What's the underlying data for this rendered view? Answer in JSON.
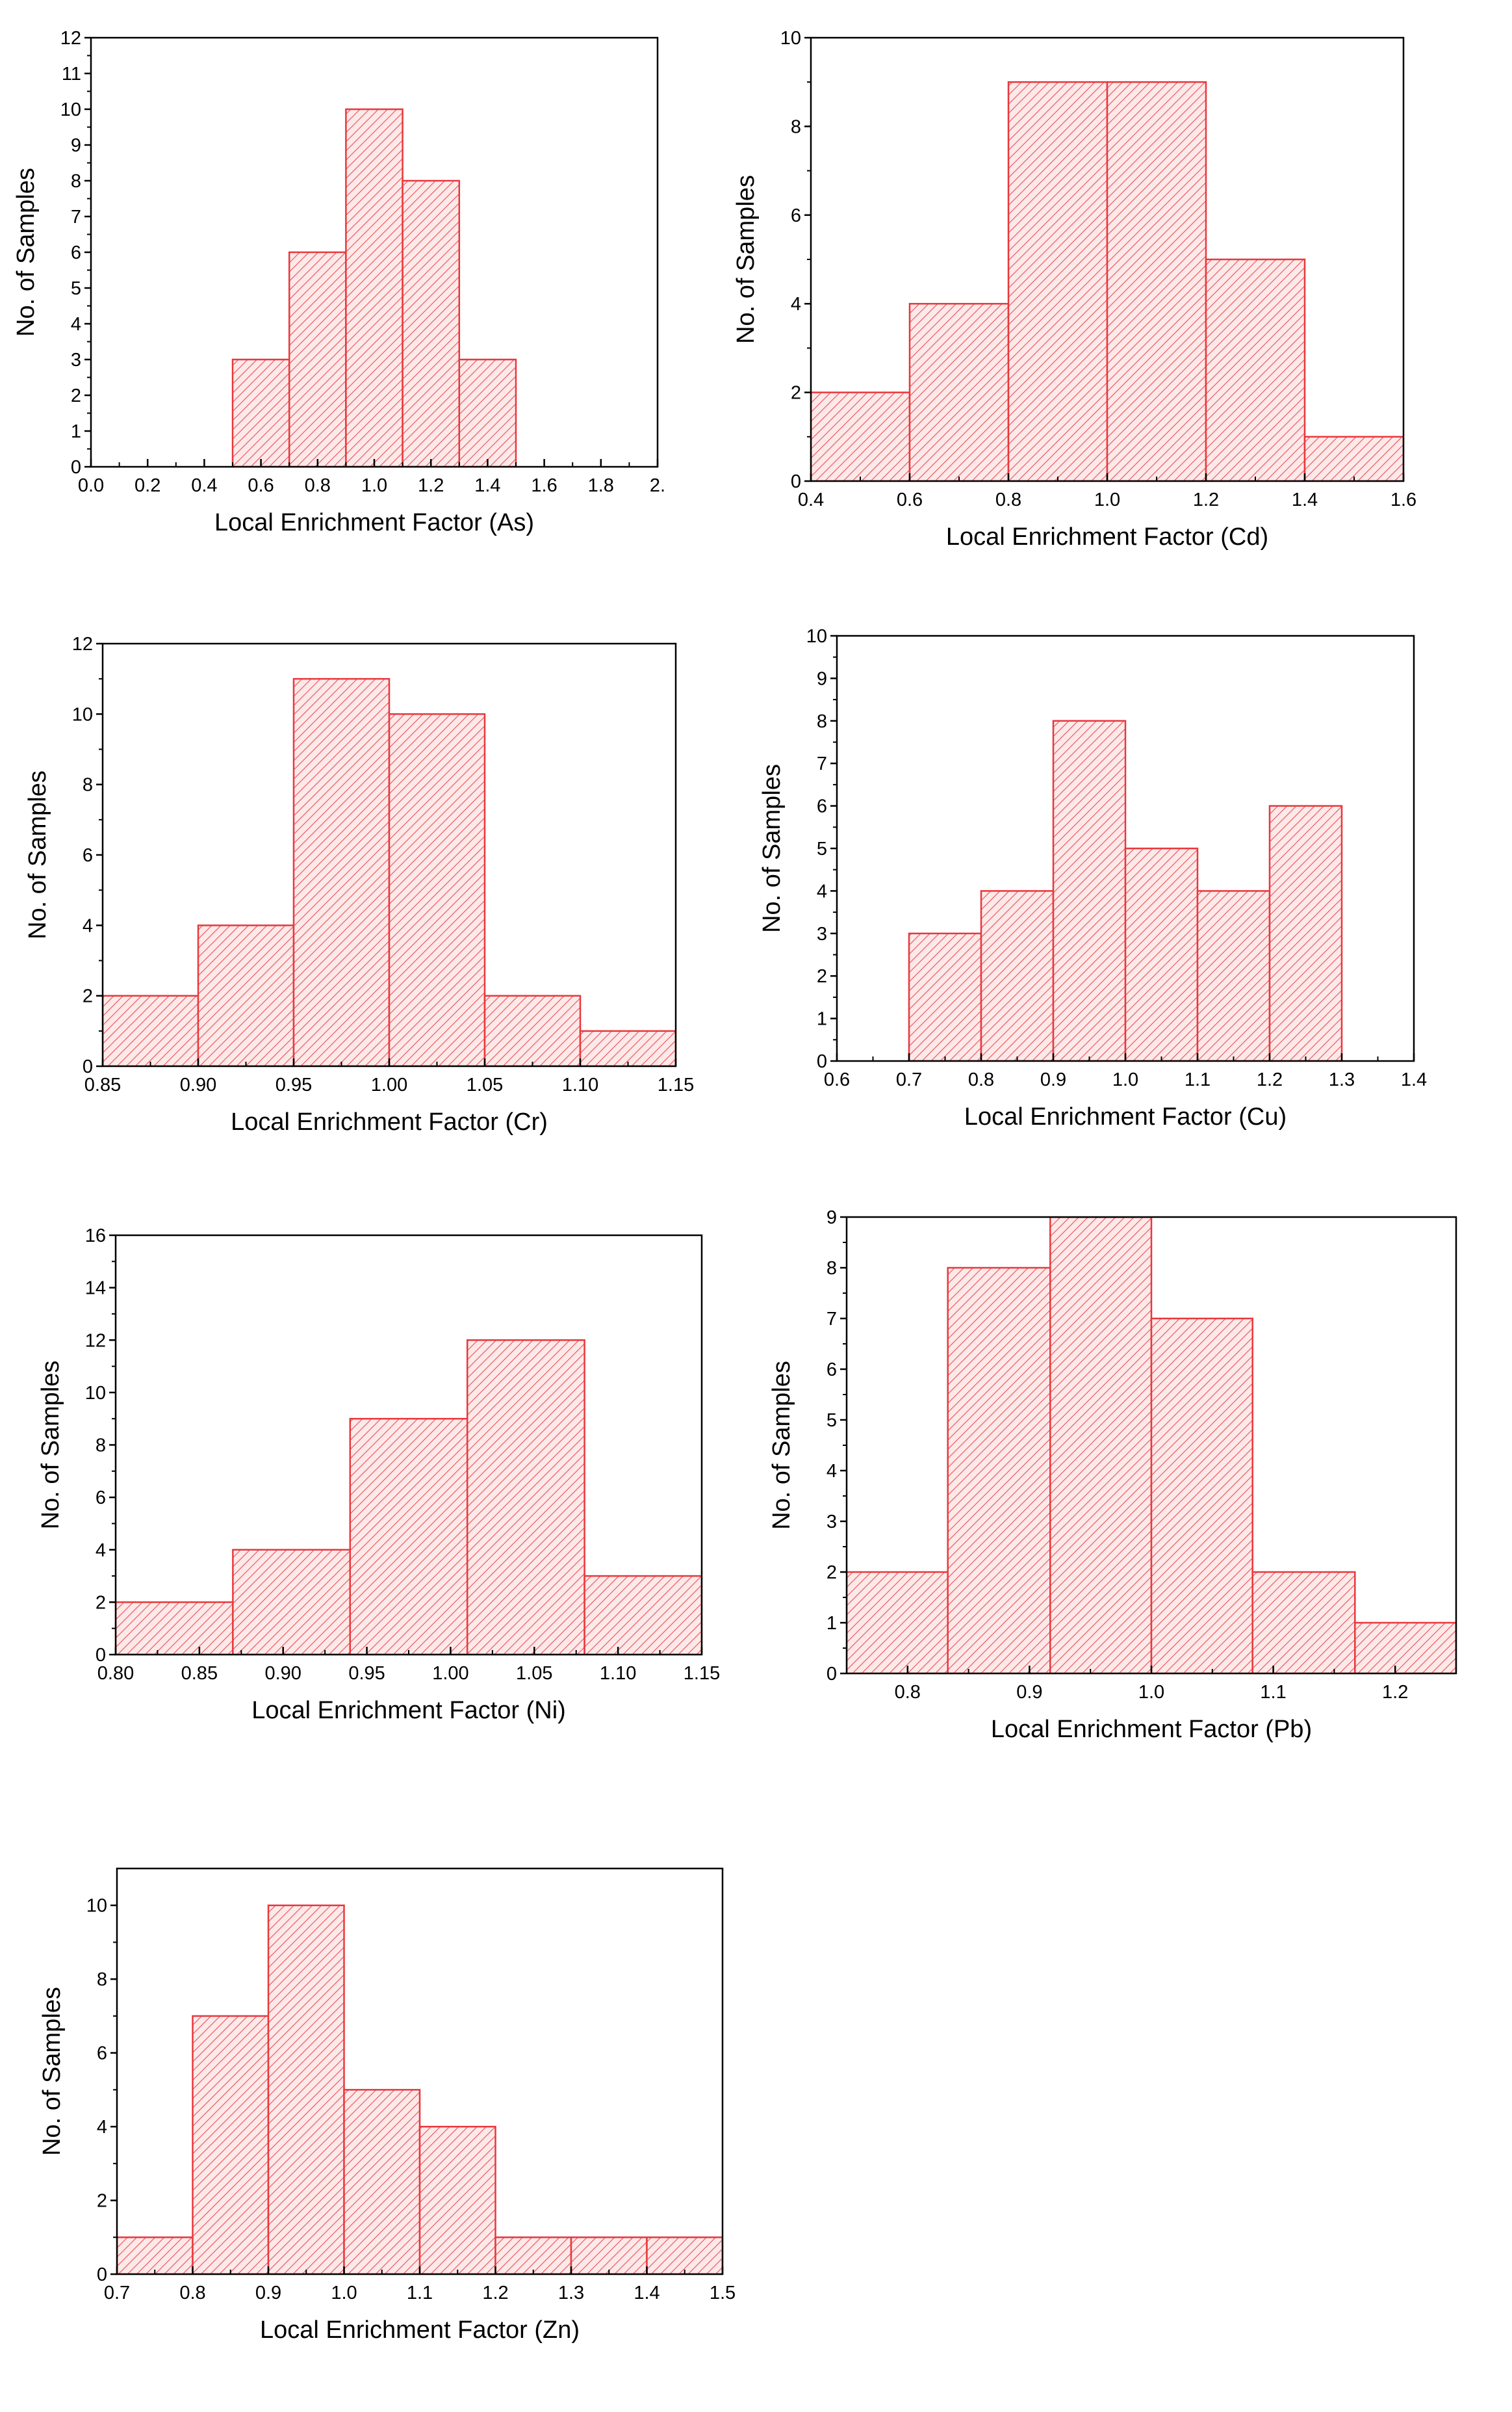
{
  "colors": {
    "bar_stroke": "#e8383d",
    "bar_fill": "#fde9e9",
    "hatch": "#ea5a5e",
    "axis": "#000000"
  },
  "chart_data": [
    {
      "type": "bar",
      "id": "As",
      "xlabel": "Local Enrichment Factor (As)",
      "ylabel": "No. of Samples",
      "bins": [
        [
          0.5,
          0.7
        ],
        [
          0.7,
          0.9
        ],
        [
          0.9,
          1.1
        ],
        [
          1.1,
          1.3
        ],
        [
          1.3,
          1.5
        ]
      ],
      "values": [
        3,
        6,
        10,
        8,
        3
      ],
      "xlim": [
        0.0,
        2.0
      ],
      "ylim": [
        0,
        12
      ],
      "xticks": [
        0.0,
        0.2,
        0.4,
        0.6,
        0.8,
        1.0,
        1.2,
        1.4,
        1.6,
        1.8,
        2.0
      ],
      "xtick_labels": [
        "0.0",
        "0.2",
        "0.4",
        "0.6",
        "0.8",
        "1.0",
        "1.2",
        "1.4",
        "1.6",
        "1.8",
        "2."
      ],
      "yticks": [
        0,
        1,
        2,
        3,
        4,
        5,
        6,
        7,
        8,
        9,
        10,
        11,
        12
      ],
      "ytick_labels": [
        "0",
        "1",
        "2",
        "3",
        "4",
        "5",
        "6",
        "7",
        "8",
        "9",
        "10",
        "11",
        "12"
      ]
    },
    {
      "type": "bar",
      "id": "Cd",
      "xlabel": "Local Enrichment Factor (Cd)",
      "ylabel": "No. of Samples",
      "bins": [
        [
          0.4,
          0.6
        ],
        [
          0.6,
          0.8
        ],
        [
          0.8,
          1.0
        ],
        [
          1.0,
          1.2
        ],
        [
          1.2,
          1.4
        ],
        [
          1.4,
          1.6
        ]
      ],
      "values": [
        2,
        4,
        9,
        9,
        5,
        1
      ],
      "xlim": [
        0.4,
        1.6
      ],
      "ylim": [
        0,
        10
      ],
      "xticks": [
        0.4,
        0.6,
        0.8,
        1.0,
        1.2,
        1.4,
        1.6
      ],
      "xtick_labels": [
        "0.4",
        "0.6",
        "0.8",
        "1.0",
        "1.2",
        "1.4",
        "1.6"
      ],
      "yticks": [
        0,
        2,
        4,
        6,
        8,
        10
      ],
      "ytick_labels": [
        "0",
        "2",
        "4",
        "6",
        "8",
        "10"
      ]
    },
    {
      "type": "bar",
      "id": "Cr",
      "xlabel": "Local Enrichment Factor (Cr)",
      "ylabel": "No. of Samples",
      "bins": [
        [
          0.85,
          0.9
        ],
        [
          0.9,
          0.95
        ],
        [
          0.95,
          1.0
        ],
        [
          1.0,
          1.05
        ],
        [
          1.05,
          1.1
        ],
        [
          1.1,
          1.15
        ]
      ],
      "values": [
        2,
        4,
        11,
        10,
        2,
        1
      ],
      "xlim": [
        0.85,
        1.15
      ],
      "ylim": [
        0,
        12
      ],
      "xticks": [
        0.85,
        0.9,
        0.95,
        1.0,
        1.05,
        1.1,
        1.15
      ],
      "xtick_labels": [
        "0.85",
        "0.90",
        "0.95",
        "1.00",
        "1.05",
        "1.10",
        "1.15"
      ],
      "yticks": [
        0,
        2,
        4,
        6,
        8,
        10,
        12
      ],
      "ytick_labels": [
        "0",
        "2",
        "4",
        "6",
        "8",
        "10",
        "12"
      ]
    },
    {
      "type": "bar",
      "id": "Cu",
      "xlabel": "Local Enrichment Factor (Cu)",
      "ylabel": "No. of Samples",
      "bins": [
        [
          0.7,
          0.8
        ],
        [
          0.8,
          0.9
        ],
        [
          0.9,
          1.0
        ],
        [
          1.0,
          1.1
        ],
        [
          1.1,
          1.2
        ],
        [
          1.2,
          1.3
        ]
      ],
      "values": [
        3,
        4,
        8,
        5,
        4,
        6
      ],
      "xlim": [
        0.6,
        1.4
      ],
      "ylim": [
        0,
        10
      ],
      "xticks": [
        0.6,
        0.7,
        0.8,
        0.9,
        1.0,
        1.1,
        1.2,
        1.3,
        1.4
      ],
      "xtick_labels": [
        "0.6",
        "0.7",
        "0.8",
        "0.9",
        "1.0",
        "1.1",
        "1.2",
        "1.3",
        "1.4"
      ],
      "yticks": [
        0,
        1,
        2,
        3,
        4,
        5,
        6,
        7,
        8,
        9,
        10
      ],
      "ytick_labels": [
        "0",
        "1",
        "2",
        "3",
        "4",
        "5",
        "6",
        "7",
        "8",
        "9",
        "10"
      ]
    },
    {
      "type": "bar",
      "id": "Ni",
      "xlabel": "Local Enrichment Factor (Ni)",
      "ylabel": "No. of Samples",
      "bins": [
        [
          0.8,
          0.87
        ],
        [
          0.87,
          0.94
        ],
        [
          0.94,
          1.01
        ],
        [
          1.01,
          1.08
        ],
        [
          1.08,
          1.15
        ]
      ],
      "values": [
        2,
        4,
        9,
        12,
        3
      ],
      "xlim": [
        0.8,
        1.15
      ],
      "ylim": [
        0,
        16
      ],
      "xticks": [
        0.8,
        0.85,
        0.9,
        0.95,
        1.0,
        1.05,
        1.1,
        1.15
      ],
      "xtick_labels": [
        "0.80",
        "0.85",
        "0.90",
        "0.95",
        "1.00",
        "1.05",
        "1.10",
        "1.15"
      ],
      "yticks": [
        0,
        2,
        4,
        6,
        8,
        10,
        12,
        14,
        16
      ],
      "ytick_labels": [
        "0",
        "2",
        "4",
        "6",
        "8",
        "10",
        "12",
        "14",
        "16"
      ]
    },
    {
      "type": "bar",
      "id": "Pb",
      "xlabel": "Local Enrichment Factor (Pb)",
      "ylabel": "No. of Samples",
      "bins": [
        [
          0.75,
          0.833
        ],
        [
          0.833,
          0.917
        ],
        [
          0.917,
          1.0
        ],
        [
          1.0,
          1.083
        ],
        [
          1.083,
          1.167
        ],
        [
          1.167,
          1.25
        ]
      ],
      "values": [
        2,
        8,
        9,
        7,
        2,
        1
      ],
      "xlim": [
        0.75,
        1.25
      ],
      "ylim": [
        0,
        9
      ],
      "xticks": [
        0.8,
        0.9,
        1.0,
        1.1,
        1.2
      ],
      "xtick_labels": [
        "0.8",
        "0.9",
        "1.0",
        "1.1",
        "1.2"
      ],
      "yticks": [
        0,
        1,
        2,
        3,
        4,
        5,
        6,
        7,
        8,
        9
      ],
      "ytick_labels": [
        "0",
        "1",
        "2",
        "3",
        "4",
        "5",
        "6",
        "7",
        "8",
        "9"
      ]
    },
    {
      "type": "bar",
      "id": "Zn",
      "xlabel": "Local Enrichment Factor (Zn)",
      "ylabel": "No. of Samples",
      "bins": [
        [
          0.7,
          0.8
        ],
        [
          0.8,
          0.9
        ],
        [
          0.9,
          1.0
        ],
        [
          1.0,
          1.1
        ],
        [
          1.1,
          1.2
        ],
        [
          1.2,
          1.3
        ],
        [
          1.3,
          1.4
        ],
        [
          1.4,
          1.5
        ]
      ],
      "values": [
        1,
        7,
        10,
        5,
        4,
        1,
        1,
        1
      ],
      "xlim": [
        0.7,
        1.5
      ],
      "ylim": [
        0,
        11
      ],
      "xticks": [
        0.7,
        0.8,
        0.9,
        1.0,
        1.1,
        1.2,
        1.3,
        1.4,
        1.5
      ],
      "xtick_labels": [
        "0.7",
        "0.8",
        "0.9",
        "1.0",
        "1.1",
        "1.2",
        "1.3",
        "1.4",
        "1.5"
      ],
      "yticks": [
        0,
        2,
        4,
        6,
        8,
        10
      ],
      "ytick_labels": [
        "0",
        "2",
        "4",
        "6",
        "8",
        "10"
      ]
    }
  ]
}
